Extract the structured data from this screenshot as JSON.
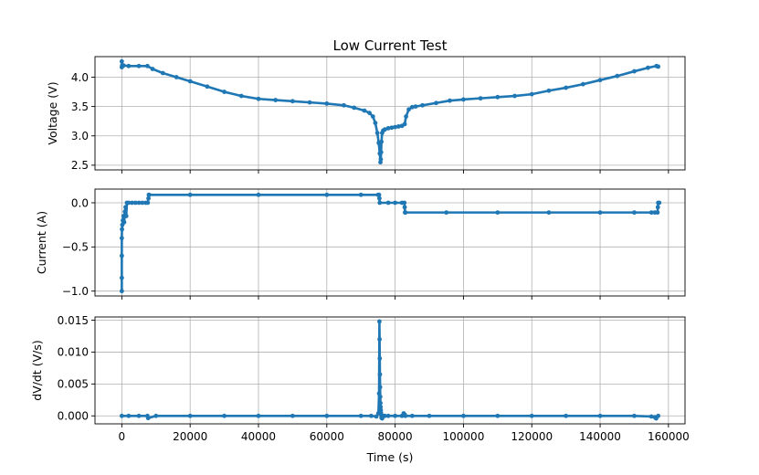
{
  "title": "Low Current Test",
  "colors": {
    "series": "#1f77b4",
    "grid": "#b0b0b0",
    "axes": "#000000"
  },
  "chart_data": [
    {
      "type": "scatter",
      "title": "Low Current Test",
      "xlabel": "",
      "ylabel": "Voltage (V)",
      "xlim": [
        -7850,
        164850
      ],
      "ylim": [
        2.42,
        4.35
      ],
      "xticks": [
        0,
        20000,
        40000,
        60000,
        80000,
        100000,
        120000,
        140000,
        160000
      ],
      "yticks": [
        2.5,
        3.0,
        3.5,
        4.0
      ],
      "ytick_labels": [
        "2.5",
        "3.0",
        "3.5",
        "4.0"
      ],
      "grid": true,
      "series": [
        {
          "x": [
            0,
            0,
            100,
            500,
            2000,
            5000,
            7500,
            9000,
            12000,
            16000,
            20000,
            25000,
            30000,
            35000,
            40000,
            45000,
            50000,
            55000,
            60000,
            65000,
            68000,
            71000,
            72500,
            73500,
            74200,
            74800,
            75200,
            75500,
            75700,
            75800,
            75900,
            76000,
            76200,
            76500,
            77000,
            78000,
            79000,
            80000,
            81000,
            82000,
            82800,
            83200,
            84000,
            85000,
            86000,
            88000,
            92000,
            96000,
            100000,
            105000,
            110000,
            115000,
            120000,
            125000,
            130000,
            135000,
            140000,
            145000,
            150000,
            154000,
            156500,
            157000
          ],
          "y": [
            4.17,
            4.27,
            4.2,
            4.2,
            4.19,
            4.19,
            4.19,
            4.14,
            4.07,
            4.0,
            3.93,
            3.84,
            3.75,
            3.68,
            3.63,
            3.61,
            3.59,
            3.57,
            3.55,
            3.52,
            3.48,
            3.43,
            3.39,
            3.33,
            3.22,
            3.05,
            2.88,
            2.7,
            2.55,
            2.6,
            2.72,
            2.9,
            3.05,
            3.09,
            3.11,
            3.13,
            3.14,
            3.15,
            3.16,
            3.17,
            3.2,
            3.33,
            3.45,
            3.49,
            3.5,
            3.52,
            3.56,
            3.6,
            3.62,
            3.64,
            3.66,
            3.68,
            3.71,
            3.77,
            3.82,
            3.88,
            3.95,
            4.02,
            4.1,
            4.16,
            4.19,
            4.18
          ]
        }
      ]
    },
    {
      "type": "scatter",
      "xlabel": "",
      "ylabel": "Current (A)",
      "xlim": [
        -7850,
        164850
      ],
      "ylim": [
        -1.055,
        0.155
      ],
      "xticks": [
        0,
        20000,
        40000,
        60000,
        80000,
        100000,
        120000,
        140000,
        160000
      ],
      "yticks": [
        -1.0,
        -0.5,
        0.0
      ],
      "ytick_labels": [
        "−1.0",
        "−0.5",
        "0.0"
      ],
      "grid": true,
      "series": [
        {
          "x": [
            0,
            0,
            0,
            0,
            50,
            150,
            300,
            500,
            700,
            900,
            1100,
            1300,
            1500,
            2000,
            3000,
            4000,
            5000,
            6000,
            7000,
            7600,
            7800,
            7900,
            8000,
            20000,
            40000,
            60000,
            70000,
            75000,
            75300,
            75400,
            75500,
            78000,
            80000,
            82000,
            82700,
            82800,
            82900,
            83000,
            95000,
            110000,
            125000,
            140000,
            150000,
            155000,
            156000,
            156800,
            156900,
            157000,
            157300
          ],
          "y": [
            -1.0,
            -0.85,
            -0.6,
            -0.4,
            -0.3,
            -0.25,
            -0.2,
            -0.15,
            -0.22,
            -0.1,
            -0.05,
            -0.15,
            0.0,
            0.0,
            0.0,
            0.0,
            0.0,
            0.0,
            0.0,
            0.0,
            0.05,
            0.09,
            0.09,
            0.09,
            0.09,
            0.09,
            0.09,
            0.09,
            0.09,
            0.05,
            0.0,
            0.0,
            0.0,
            0.0,
            0.0,
            -0.05,
            -0.11,
            -0.11,
            -0.11,
            -0.11,
            -0.11,
            -0.11,
            -0.11,
            -0.11,
            -0.11,
            -0.11,
            -0.05,
            0.0,
            0.0
          ]
        }
      ]
    },
    {
      "type": "scatter",
      "xlabel": "Time (s)",
      "ylabel": "dV/dt (V/s)",
      "xlim": [
        -7850,
        164850
      ],
      "ylim": [
        -0.00125,
        0.0155
      ],
      "xticks": [
        0,
        20000,
        40000,
        60000,
        80000,
        100000,
        120000,
        140000,
        160000
      ],
      "xtick_labels": [
        "0",
        "20000",
        "40000",
        "60000",
        "80000",
        "100000",
        "120000",
        "140000",
        "160000"
      ],
      "yticks": [
        0.0,
        0.005,
        0.01,
        0.015
      ],
      "ytick_labels": [
        "0.000",
        "0.005",
        "0.010",
        "0.015"
      ],
      "grid": true,
      "series": [
        {
          "x": [
            0,
            2000,
            5000,
            7500,
            7700,
            10000,
            20000,
            30000,
            40000,
            50000,
            60000,
            70000,
            73000,
            74500,
            75100,
            75300,
            75400,
            75450,
            75500,
            75550,
            75600,
            75650,
            75700,
            75750,
            75800,
            75850,
            75900,
            76000,
            76200,
            76500,
            77000,
            78000,
            80000,
            82000,
            82500,
            82800,
            83000,
            85000,
            90000,
            100000,
            110000,
            120000,
            130000,
            140000,
            150000,
            155000,
            156000,
            156400,
            157000
          ],
          "y": [
            0.0,
            0.0,
            0.0,
            0.0,
            -0.00035,
            0.0,
            0.0,
            0.0,
            0.0,
            0.0,
            0.0,
            0.0,
            0.0,
            -0.0001,
            0.0004,
            0.0035,
            0.0148,
            0.012,
            0.009,
            0.0065,
            0.0045,
            0.003,
            0.002,
            0.0014,
            0.0009,
            0.0005,
            0.0002,
            -0.0003,
            -0.0004,
            0.0,
            0.0,
            0.0,
            0.0,
            0.0,
            0.0004,
            0.0002,
            0.0,
            0.0,
            0.0,
            0.0,
            0.0,
            0.0,
            0.0,
            0.0,
            0.0,
            -0.0001,
            -0.0002,
            -0.0004,
            0.0
          ]
        }
      ]
    }
  ]
}
